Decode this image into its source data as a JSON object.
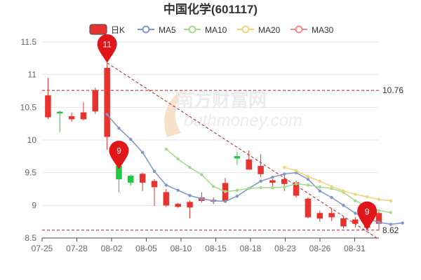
{
  "chart_data": {
    "type": "candlestick",
    "title": "中国化学(601117)",
    "xlabel": "",
    "ylabel": "",
    "ylim": [
      8.5,
      11.5
    ],
    "y_ticks": [
      "8.5",
      "9",
      "9.5",
      "10",
      "10.5",
      "11",
      "11.5"
    ],
    "x_tick_labels": [
      "07-25",
      "07-28",
      "08-02",
      "08-05",
      "08-10",
      "08-15",
      "08-18",
      "08-23",
      "08-26",
      "08-31"
    ],
    "legend_position": "top",
    "grid": true,
    "colors": {
      "up": "#e8322f",
      "down": "#22c840",
      "ma5": "#7f96c9",
      "ma10": "#a5d98c",
      "ma20": "#f3d27b",
      "ma30": "#f08a8a",
      "ref_line": "#b22222",
      "grid": "#e5e5e5",
      "axis": "#666666"
    },
    "legend": [
      {
        "name": "日K",
        "key": "kline",
        "marker": "candle"
      },
      {
        "name": "MA5",
        "key": "ma5",
        "marker": "circle"
      },
      {
        "name": "MA10",
        "key": "ma10",
        "marker": "circle"
      },
      {
        "name": "MA20",
        "key": "ma20",
        "marker": "circle"
      },
      {
        "name": "MA30",
        "key": "ma30",
        "marker": "circle"
      }
    ],
    "candles": [
      {
        "open": 10.35,
        "close": 10.68,
        "high": 10.95,
        "low": 10.32
      },
      {
        "open": 10.43,
        "close": 10.41,
        "high": 10.45,
        "low": 10.12
      },
      {
        "open": 10.32,
        "close": 10.36,
        "high": 10.42,
        "low": 10.28
      },
      {
        "open": 10.32,
        "close": 10.42,
        "high": 10.58,
        "low": 10.3
      },
      {
        "open": 10.44,
        "close": 10.76,
        "high": 10.8,
        "low": 10.4
      },
      {
        "open": 10.05,
        "close": 11.1,
        "high": 11.18,
        "low": 9.85
      },
      {
        "open": 9.6,
        "close": 9.4,
        "high": 9.62,
        "low": 9.2
      },
      {
        "open": 9.45,
        "close": 9.35,
        "high": 9.47,
        "low": 9.3
      },
      {
        "open": 9.35,
        "close": 9.48,
        "high": 9.5,
        "low": 9.22
      },
      {
        "open": 9.28,
        "close": 9.37,
        "high": 9.4,
        "low": 8.99
      },
      {
        "open": 9.0,
        "close": 9.2,
        "high": 9.25,
        "low": 8.97
      },
      {
        "open": 8.98,
        "close": 9.02,
        "high": 9.04,
        "low": 8.96
      },
      {
        "open": 8.97,
        "close": 9.05,
        "high": 9.07,
        "low": 8.8
      },
      {
        "open": 9.07,
        "close": 9.12,
        "high": 9.2,
        "low": 9.04
      },
      {
        "open": 9.06,
        "close": 9.08,
        "high": 9.12,
        "low": 9.02
      },
      {
        "open": 9.07,
        "close": 9.34,
        "high": 9.42,
        "low": 9.04
      },
      {
        "open": 9.75,
        "close": 9.72,
        "high": 9.82,
        "low": 9.62
      },
      {
        "open": 9.55,
        "close": 9.7,
        "high": 9.84,
        "low": 9.55
      },
      {
        "open": 9.48,
        "close": 9.6,
        "high": 9.78,
        "low": 9.43
      },
      {
        "open": 9.35,
        "close": 9.38,
        "high": 9.4,
        "low": 9.3
      },
      {
        "open": 9.33,
        "close": 9.4,
        "high": 9.5,
        "low": 9.22
      },
      {
        "open": 9.15,
        "close": 9.35,
        "high": 9.38,
        "low": 9.12
      },
      {
        "open": 8.82,
        "close": 9.1,
        "high": 9.12,
        "low": 8.8
      },
      {
        "open": 8.8,
        "close": 8.88,
        "high": 8.92,
        "low": 8.75
      },
      {
        "open": 8.82,
        "close": 8.88,
        "high": 8.95,
        "low": 8.76
      },
      {
        "open": 8.68,
        "close": 8.8,
        "high": 8.82,
        "low": 8.65
      },
      {
        "open": 8.72,
        "close": 8.78,
        "high": 8.82,
        "low": 8.66
      },
      {
        "open": 8.66,
        "close": 8.68,
        "high": 8.7,
        "low": 8.62
      },
      {
        "open": 8.72,
        "close": 8.88,
        "high": 8.9,
        "low": 8.62
      }
    ],
    "series": [
      {
        "name": "MA5",
        "key": "ma5",
        "start": 5,
        "values": [
          10.39,
          10.18,
          10.01,
          9.81,
          9.52,
          9.31,
          9.23,
          9.15,
          9.1,
          9.07,
          9.06,
          9.14,
          9.26,
          9.37,
          9.43,
          9.48,
          9.5,
          9.4,
          9.22,
          9.12,
          9.0,
          8.88,
          8.8,
          8.74,
          8.71,
          8.73
        ]
      },
      {
        "name": "MA10",
        "key": "ma10",
        "start": 10,
        "values": [
          9.86,
          9.71,
          9.58,
          9.47,
          9.29,
          9.21,
          9.23,
          9.26,
          9.27,
          9.27,
          9.28,
          9.33,
          9.31,
          9.28,
          9.26,
          9.2,
          9.07,
          8.99,
          8.92,
          8.89
        ]
      },
      {
        "name": "MA20",
        "key": "ma20",
        "start": 20,
        "values": [
          9.58,
          9.53,
          9.44,
          9.37,
          9.29,
          9.22,
          9.17,
          9.13,
          9.09,
          9.07
        ]
      },
      {
        "name": "MA30",
        "key": "ma30",
        "start": 29,
        "values": []
      }
    ],
    "reference_lines": [
      {
        "value": 10.76,
        "label": "10.76"
      },
      {
        "value": 8.62,
        "label": "8.62"
      }
    ],
    "trend_line": {
      "from_index": 5,
      "from_value": 11.18,
      "to_index": 28,
      "to_value": 8.48
    },
    "pins": [
      {
        "label": "11",
        "index": 5,
        "value": 11.18
      },
      {
        "label": "9",
        "index": 6,
        "value": 9.55
      },
      {
        "label": "9",
        "index": 27,
        "value": 8.62
      }
    ],
    "watermark": {
      "cn": "南方财富网",
      "en": "outhmoney.com"
    }
  }
}
